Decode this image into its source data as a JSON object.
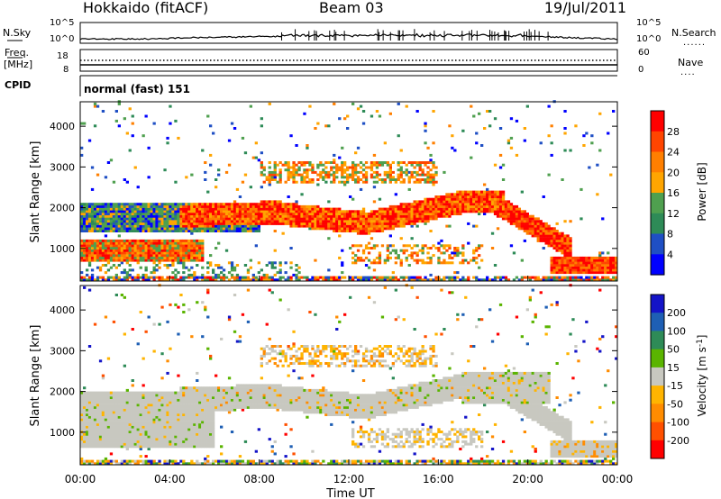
{
  "header": {
    "station": "Hokkaido (fitACF)",
    "beam": "Beam 03",
    "date": "19/Jul/2011"
  },
  "top_panels": {
    "nsky_label": "N.Sky",
    "nsky_ticks": [
      "10^5",
      "10^0"
    ],
    "nsearch_label": "N.Search",
    "nsearch_ticks": [
      "10^5",
      "10^0"
    ],
    "freq_label": "Freq.",
    "freq_unit": "[MHz]",
    "freq_ticks": [
      "18",
      "8"
    ],
    "nave_label": "Nave",
    "nave_ticks": [
      "60",
      "0"
    ],
    "cpid_label": "CPID",
    "cpid_value": "normal (fast) 151",
    "legend_dots": "......",
    "legend_dots_short": "...."
  },
  "colors": {
    "power_scale": [
      "#0000ff",
      "#1f4fc4",
      "#2e8b57",
      "#4fa04f",
      "#ffa500",
      "#ff7f00",
      "#ff4500",
      "#ff0000"
    ],
    "velocity_scale": [
      "#1414c8",
      "#1e5fb4",
      "#2e8b57",
      "#5ab400",
      "#c8c8c0",
      "#ffb400",
      "#ff8c00",
      "#ff5000",
      "#ff0000"
    ]
  },
  "chart_data": [
    {
      "type": "heatmap",
      "name": "power",
      "xlabel": "Time UT",
      "ylabel": "Slant Range [km]",
      "x_ticks": [
        "00:00",
        "04:00",
        "08:00",
        "12:00",
        "16:00",
        "20:00",
        "00:00"
      ],
      "y_ticks": [
        1000,
        2000,
        3000,
        4000
      ],
      "ylim": [
        200,
        4600
      ],
      "colorbar_label": "Power [dB]",
      "colorbar_ticks": [
        28,
        24,
        20,
        16,
        12,
        8,
        4
      ],
      "bands": [
        {
          "t": [
            0,
            24
          ],
          "r": [
            250,
            320
          ],
          "level": "low-mixed"
        },
        {
          "t": [
            0,
            5
          ],
          "r": [
            700,
            1200
          ],
          "level": "orange-red"
        },
        {
          "t": [
            0,
            8
          ],
          "r": [
            1400,
            2000
          ],
          "level": "green"
        },
        {
          "t": [
            4.5,
            18
          ],
          "r": [
            1600,
            2300
          ],
          "level": "red"
        },
        {
          "t": [
            15,
            20
          ],
          "r": [
            1800,
            2600
          ],
          "level": "red"
        },
        {
          "t": [
            19,
            22
          ],
          "r": [
            900,
            1900
          ],
          "level": "red"
        },
        {
          "t": [
            21,
            24
          ],
          "r": [
            400,
            800
          ],
          "level": "red"
        },
        {
          "t": [
            8,
            16
          ],
          "r": [
            2600,
            3100
          ],
          "level": "orange"
        }
      ]
    },
    {
      "type": "heatmap",
      "name": "velocity",
      "xlabel": "Time UT",
      "ylabel": "Slant Range [km]",
      "x_ticks": [
        "00:00",
        "04:00",
        "08:00",
        "12:00",
        "16:00",
        "20:00",
        "00:00"
      ],
      "y_ticks": [
        1000,
        2000,
        3000,
        4000
      ],
      "ylim": [
        200,
        4600
      ],
      "colorbar_label": "Velocity [m s",
      "colorbar_unit_exp": "-1",
      "colorbar_unit_close": "]",
      "colorbar_ticks": [
        200,
        100,
        50,
        15,
        -15,
        -50,
        -100,
        -200
      ]
    }
  ]
}
